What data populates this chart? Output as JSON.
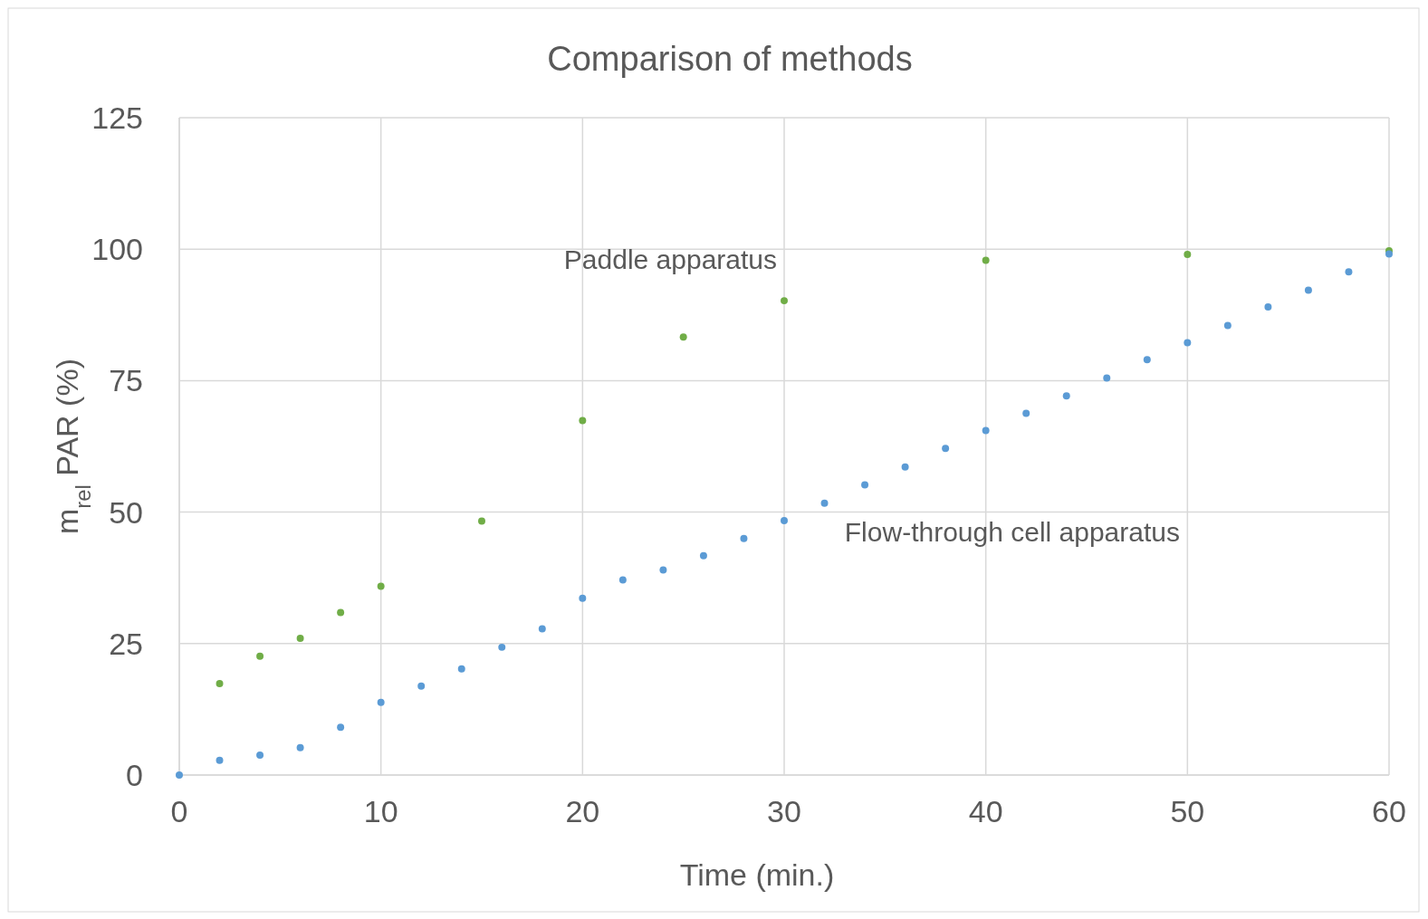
{
  "chart_data": {
    "type": "scatter",
    "title": "Comparison of methods",
    "xlabel": "Time (min.)",
    "ylabel": "m$_{rel}$ PAR (%)",
    "xlim": [
      0,
      60
    ],
    "xticks": [
      0,
      10,
      20,
      30,
      40,
      50,
      60
    ],
    "ylim": [
      0,
      125
    ],
    "yticks": [
      0,
      25,
      50,
      75,
      100,
      125
    ],
    "grid": true,
    "marker": "circle",
    "series": [
      {
        "name": "Paddle apparatus",
        "color": "#70ad47",
        "x": [
          2,
          4,
          6,
          8,
          10,
          15,
          20,
          25,
          30,
          40,
          50,
          60
        ],
        "values": [
          17.4,
          22.6,
          26.0,
          30.9,
          35.9,
          48.3,
          67.4,
          83.3,
          90.2,
          97.9,
          99.0,
          99.7
        ]
      },
      {
        "name": "Flow-through cell apparatus",
        "color": "#5b9bd5",
        "x": [
          0,
          2,
          4,
          6,
          8,
          10,
          12,
          14,
          16,
          18,
          20,
          22,
          24,
          26,
          28,
          30,
          32,
          34,
          36,
          38,
          40,
          42,
          44,
          46,
          48,
          50,
          52,
          54,
          56,
          58,
          60
        ],
        "values": [
          0,
          2.8,
          3.8,
          5.2,
          9.1,
          13.8,
          16.9,
          20.2,
          24.3,
          27.8,
          33.6,
          37.1,
          39.0,
          41.7,
          45.0,
          48.4,
          51.7,
          55.2,
          58.6,
          62.1,
          65.5,
          68.8,
          72.1,
          75.5,
          79.0,
          82.2,
          85.5,
          89.0,
          92.2,
          95.7,
          99.1
        ]
      }
    ]
  }
}
